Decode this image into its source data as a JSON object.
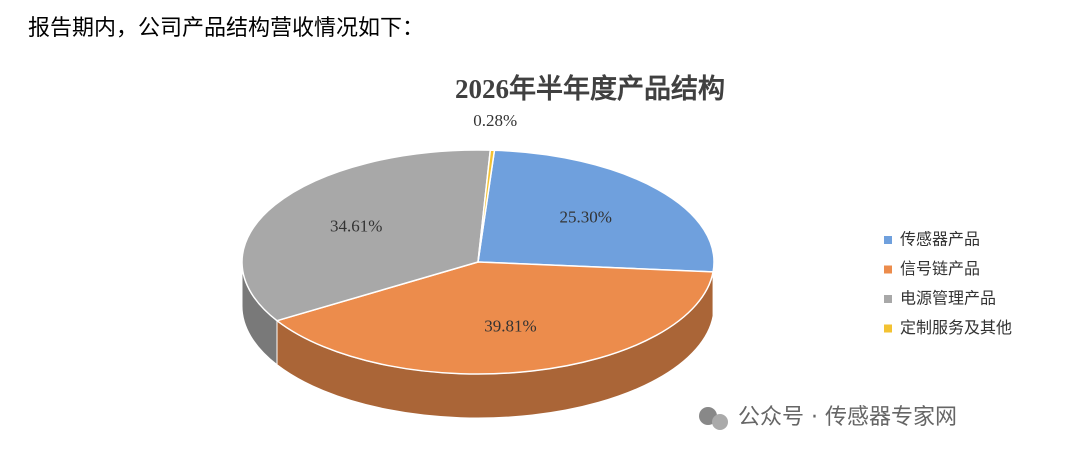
{
  "intro": "报告期内，公司产品结构营收情况如下：",
  "watermark": "公众号 · 传感器专家网",
  "chart_data": {
    "type": "pie",
    "title": "2026年半年度产品结构",
    "categories": [
      "传感器产品",
      "信号链产品",
      "电源管理产品",
      "定制服务及其他"
    ],
    "values": [
      25.3,
      39.81,
      34.61,
      0.28
    ],
    "value_labels": [
      "25.30%",
      "39.81%",
      "34.61%",
      "0.28%"
    ],
    "colors": [
      "#6fa0dd",
      "#ec8c4c",
      "#a8a8a8",
      "#f3c232"
    ],
    "legend": "right"
  }
}
